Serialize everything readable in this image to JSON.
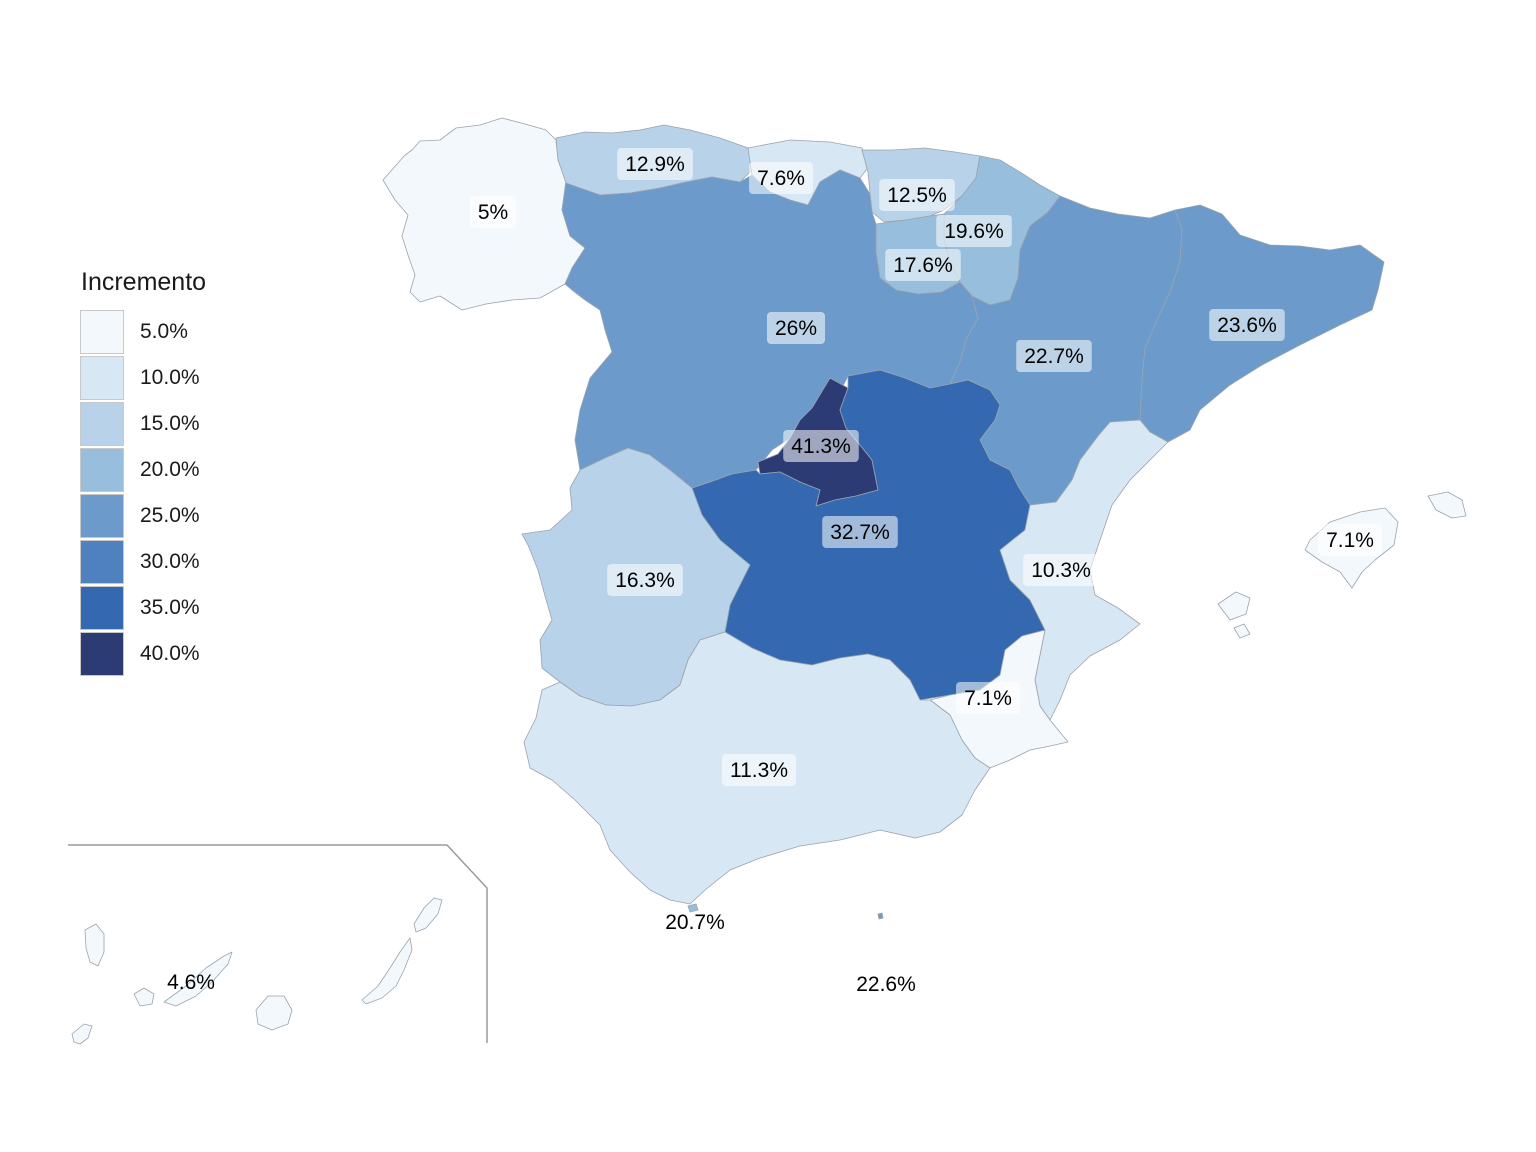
{
  "legend": {
    "title": "Incremento",
    "items": [
      {
        "label": "5.0%",
        "color": "#f3f8fc"
      },
      {
        "label": "10.0%",
        "color": "#d8e7f4"
      },
      {
        "label": "15.0%",
        "color": "#b8d2e9"
      },
      {
        "label": "20.0%",
        "color": "#98bedd"
      },
      {
        "label": "25.0%",
        "color": "#6c9bcb"
      },
      {
        "label": "30.0%",
        "color": "#4f80c0"
      },
      {
        "label": "35.0%",
        "color": "#3468b0"
      },
      {
        "label": "40.0%",
        "color": "#2c3b74"
      }
    ]
  },
  "regions": [
    {
      "id": "galicia",
      "label": "5%",
      "value": 5.0,
      "boxed": true
    },
    {
      "id": "asturias",
      "label": "12.9%",
      "value": 12.9,
      "boxed": true
    },
    {
      "id": "cantabria",
      "label": "7.6%",
      "value": 7.6,
      "boxed": true
    },
    {
      "id": "pais-vasco",
      "label": "12.5%",
      "value": 12.5,
      "boxed": true
    },
    {
      "id": "navarra",
      "label": "19.6%",
      "value": 19.6,
      "boxed": true
    },
    {
      "id": "la-rioja",
      "label": "17.6%",
      "value": 17.6,
      "boxed": true
    },
    {
      "id": "castilla-leon",
      "label": "26%",
      "value": 26.0,
      "boxed": true
    },
    {
      "id": "aragon",
      "label": "22.7%",
      "value": 22.7,
      "boxed": true
    },
    {
      "id": "cataluna",
      "label": "23.6%",
      "value": 23.6,
      "boxed": true
    },
    {
      "id": "madrid",
      "label": "41.3%",
      "value": 41.3,
      "boxed": true
    },
    {
      "id": "castilla-mancha",
      "label": "32.7%",
      "value": 32.7,
      "boxed": true
    },
    {
      "id": "extremadura",
      "label": "16.3%",
      "value": 16.3,
      "boxed": true
    },
    {
      "id": "valencia",
      "label": "10.3%",
      "value": 10.3,
      "boxed": true
    },
    {
      "id": "murcia",
      "label": "7.1%",
      "value": 7.1,
      "boxed": true
    },
    {
      "id": "andalucia",
      "label": "11.3%",
      "value": 11.3,
      "boxed": true
    },
    {
      "id": "baleares",
      "label": "7.1%",
      "value": 7.1,
      "boxed": true
    },
    {
      "id": "ceuta",
      "label": "20.7%",
      "value": 20.7,
      "boxed": false
    },
    {
      "id": "melilla",
      "label": "22.6%",
      "value": 22.6,
      "boxed": false
    },
    {
      "id": "canarias",
      "label": "4.6%",
      "value": 4.6,
      "boxed": false
    }
  ]
}
